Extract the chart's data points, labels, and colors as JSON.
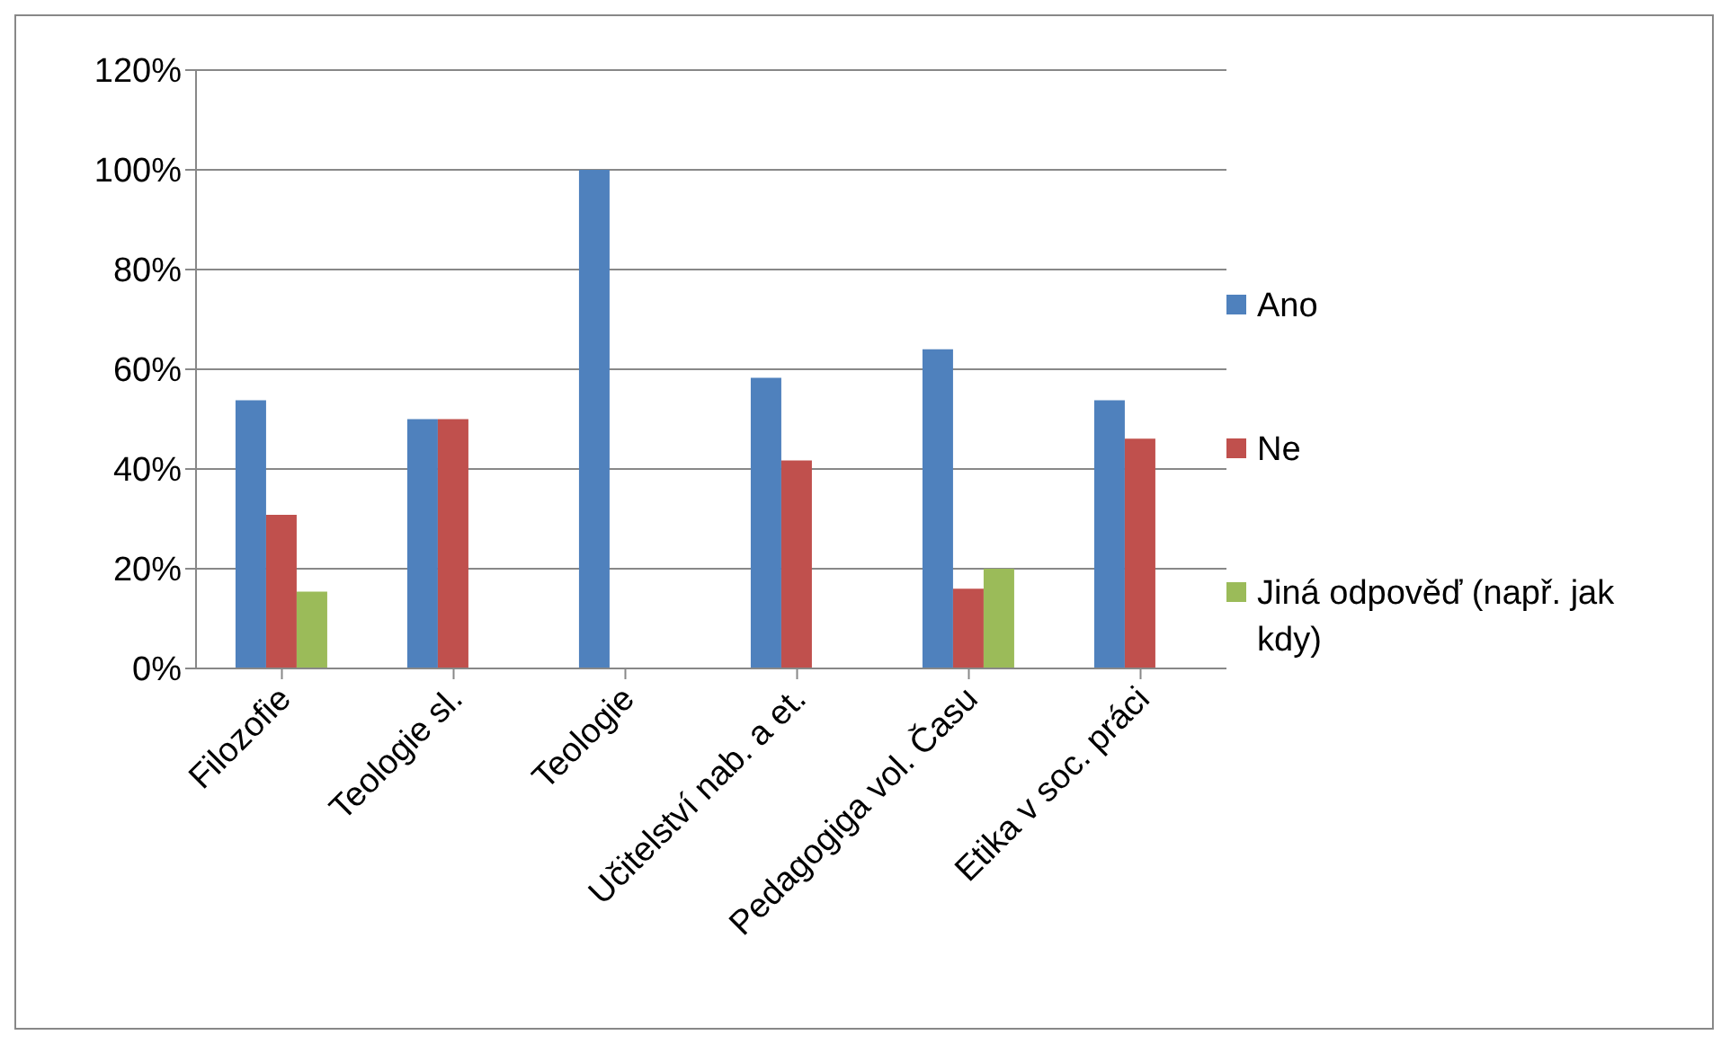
{
  "chart_data": {
    "type": "bar",
    "categories": [
      "Filozofie",
      "Teologie sl.",
      "Teologie",
      "Učitelství nab. a et.",
      "Pedagogiga vol. Času",
      "Etika v soc. práci"
    ],
    "series": [
      {
        "name": "Ano",
        "color": "#4f81bd",
        "values": [
          53.8,
          50,
          100,
          58.3,
          64,
          53.8
        ]
      },
      {
        "name": "Ne",
        "color": "#c0504d",
        "values": [
          30.8,
          50,
          0,
          41.7,
          16,
          46.1
        ]
      },
      {
        "name": "Jiná odpověď (např. jak kdy)",
        "color": "#9bbb59",
        "values": [
          15.4,
          0,
          0,
          0,
          20,
          0
        ]
      }
    ],
    "ylim": [
      0,
      120
    ],
    "yticks": [
      {
        "value": 0,
        "label": "0%"
      },
      {
        "value": 20,
        "label": "20%"
      },
      {
        "value": 40,
        "label": "40%"
      },
      {
        "value": 60,
        "label": "60%"
      },
      {
        "value": 80,
        "label": "80%"
      },
      {
        "value": 100,
        "label": "100%"
      },
      {
        "value": 120,
        "label": "120%"
      }
    ],
    "grid": "y",
    "legend": "right"
  }
}
